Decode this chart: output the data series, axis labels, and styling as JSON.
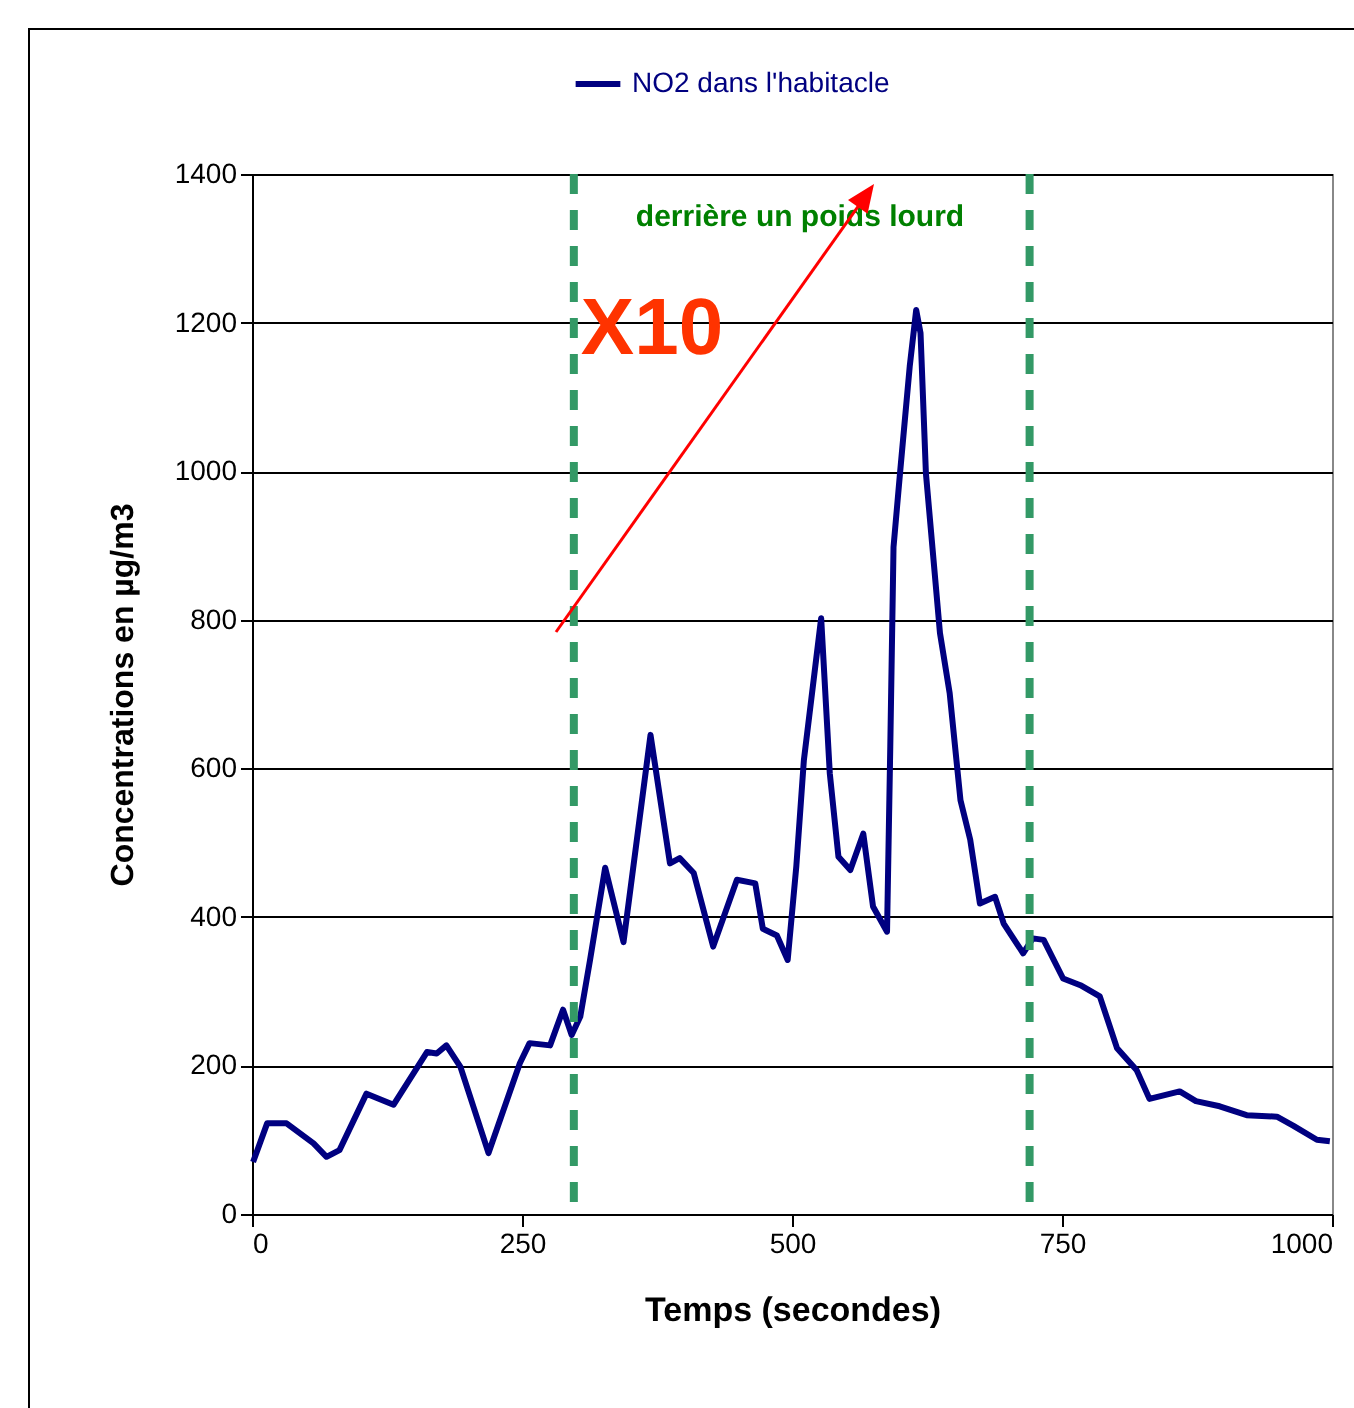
{
  "chart_data": {
    "type": "line",
    "xlabel": "Temps (secondes)",
    "ylabel": "Concentrations en µg/m3",
    "xlim": [
      0,
      1000
    ],
    "xticks": [
      0,
      250,
      500,
      750,
      1000
    ],
    "ylim": [
      0,
      1400
    ],
    "yticks": [
      0,
      200,
      400,
      600,
      800,
      1000,
      1200,
      1400
    ],
    "grid": "y",
    "legend": "top",
    "marker": "none",
    "line_style": "solid",
    "series": [
      {
        "name": "NO2 dans l'habitacle",
        "color": "#000080",
        "x": [
          1,
          14,
          32,
          57,
          69,
          81,
          106,
          131,
          162,
          171,
          180,
          193,
          219,
          248,
          257,
          276,
          288,
          296,
          304,
          313,
          327,
          344,
          369,
          387,
          396,
          409,
          427,
          449,
          466,
          473,
          486,
          496,
          504,
          511,
          527,
          535,
          543,
          554,
          566,
          575,
          588,
          591,
          594,
          600,
          609,
          615,
          619,
          624,
          637,
          646,
          656,
          665,
          674,
          688,
          696,
          714,
          723,
          733,
          751,
          767,
          785,
          801,
          819,
          831,
          859,
          874,
          896,
          921,
          949,
          964,
          986,
          998
        ],
        "values": [
          70,
          122,
          122,
          95,
          77,
          86,
          162,
          147,
          218,
          216,
          227,
          198,
          82,
          203,
          230,
          227,
          275,
          241,
          266,
          342,
          466,
          366,
          645,
          472,
          479,
          459,
          360,
          450,
          445,
          384,
          375,
          342,
          468,
          611,
          802,
          593,
          481,
          463,
          512,
          414,
          380,
          629,
          898,
          997,
          1141,
          1217,
          1186,
          997,
          782,
          701,
          557,
          504,
          418,
          427,
          391,
          351,
          371,
          369,
          317,
          308,
          293,
          223,
          194,
          155,
          165,
          152,
          145,
          133,
          131,
          119,
          100,
          98
        ]
      }
    ],
    "ref_lines": [
      {
        "axis": "x",
        "value": 298,
        "color": "#339966",
        "line_style": "dashed"
      },
      {
        "axis": "x",
        "value": 720,
        "color": "#339966",
        "line_style": "dashed"
      }
    ],
    "annotations": [
      "derrière un poids lourd",
      "X10"
    ]
  }
}
